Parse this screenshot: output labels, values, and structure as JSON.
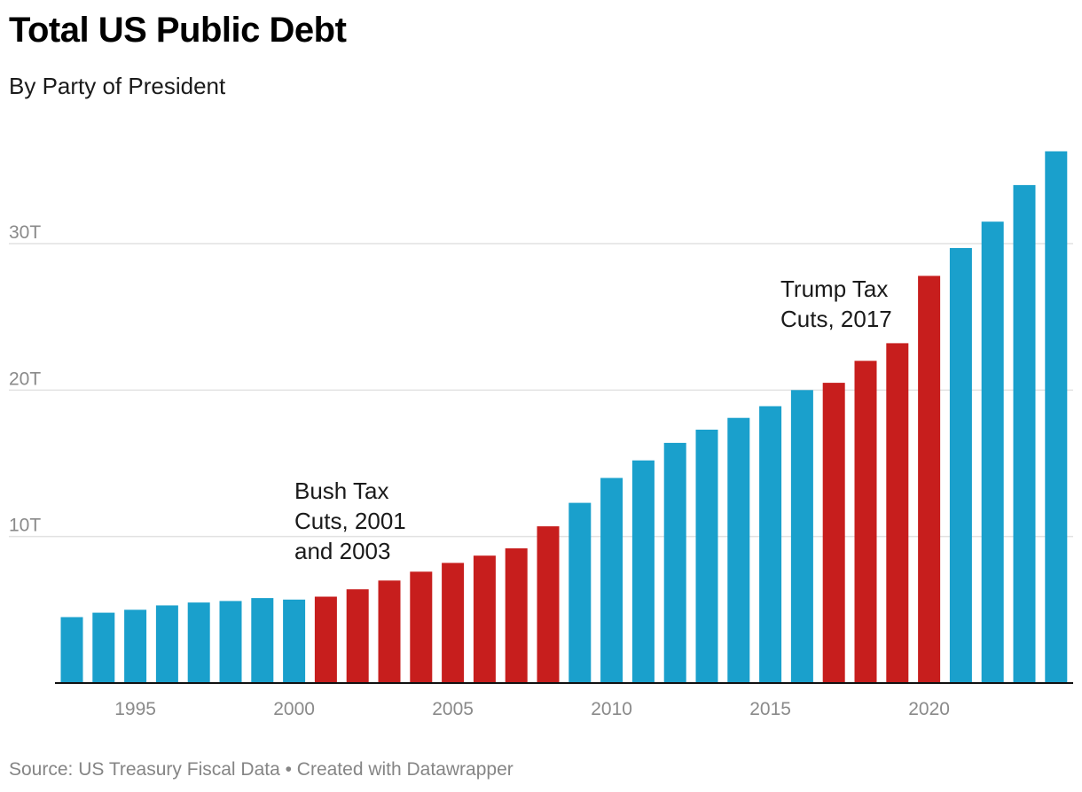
{
  "chart_data": {
    "type": "bar",
    "title": "Total US Public Debt",
    "subtitle": "By Party of President",
    "source": "Source: US Treasury Fiscal Data • Created with Datawrapper",
    "xlabel": "",
    "ylabel": "",
    "ylim": [
      0,
      36
    ],
    "y_ticks": [
      {
        "value": 10,
        "label": "10T"
      },
      {
        "value": 20,
        "label": "20T"
      },
      {
        "value": 30,
        "label": "30T"
      }
    ],
    "x_ticks": [
      {
        "value": 1995,
        "label": "1995"
      },
      {
        "value": 2000,
        "label": "2000"
      },
      {
        "value": 2005,
        "label": "2005"
      },
      {
        "value": 2010,
        "label": "2010"
      },
      {
        "value": 2015,
        "label": "2015"
      },
      {
        "value": 2020,
        "label": "2020"
      }
    ],
    "party_colors": {
      "Democratic": "#1aa0cc",
      "Republican": "#c71e1d"
    },
    "years": [
      1993,
      1994,
      1995,
      1996,
      1997,
      1998,
      1999,
      2000,
      2001,
      2002,
      2003,
      2004,
      2005,
      2006,
      2007,
      2008,
      2009,
      2010,
      2011,
      2012,
      2013,
      2014,
      2015,
      2016,
      2017,
      2018,
      2019,
      2020,
      2021,
      2022,
      2023,
      2024
    ],
    "values": [
      4.5,
      4.8,
      5.0,
      5.3,
      5.5,
      5.6,
      5.8,
      5.7,
      5.9,
      6.4,
      7.0,
      7.6,
      8.2,
      8.7,
      9.2,
      10.7,
      12.3,
      14.0,
      15.2,
      16.4,
      17.3,
      18.1,
      18.9,
      20.0,
      20.5,
      22.0,
      23.2,
      27.8,
      29.7,
      31.5,
      34.0,
      36.3
    ],
    "party": [
      "Democratic",
      "Democratic",
      "Democratic",
      "Democratic",
      "Democratic",
      "Democratic",
      "Democratic",
      "Democratic",
      "Republican",
      "Republican",
      "Republican",
      "Republican",
      "Republican",
      "Republican",
      "Republican",
      "Republican",
      "Democratic",
      "Democratic",
      "Democratic",
      "Democratic",
      "Democratic",
      "Democratic",
      "Democratic",
      "Democratic",
      "Republican",
      "Republican",
      "Republican",
      "Republican",
      "Democratic",
      "Democratic",
      "Democratic",
      "Democratic"
    ],
    "annotations": [
      {
        "lines": [
          "Bush Tax",
          "Cuts, 2001",
          "and 2003"
        ],
        "anchor_year": 2001
      },
      {
        "lines": [
          "Trump Tax",
          "Cuts, 2017"
        ],
        "anchor_year": 2017
      }
    ]
  }
}
